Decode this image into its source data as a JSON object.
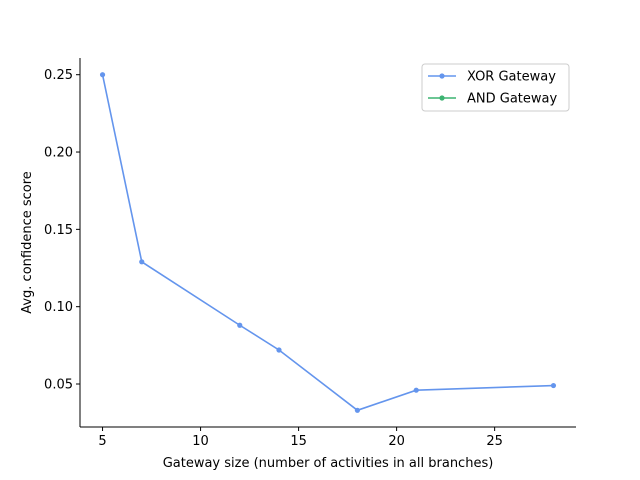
{
  "chart_data": {
    "type": "line",
    "title": "",
    "xlabel": "Gateway size (number of activities in all branches)",
    "ylabel": "Avg. confidence score",
    "xlim": [
      3.85,
      29.15
    ],
    "ylim": [
      0.0222,
      0.2608
    ],
    "xticks": [
      5,
      10,
      15,
      20,
      25
    ],
    "xtick_labels": [
      "5",
      "10",
      "15",
      "20",
      "25"
    ],
    "yticks": [
      0.05,
      0.1,
      0.15,
      0.2,
      0.25
    ],
    "ytick_labels": [
      "0.05",
      "0.10",
      "0.15",
      "0.20",
      "0.25"
    ],
    "grid": false,
    "legend_position": "upper right",
    "series": [
      {
        "name": "XOR Gateway",
        "color": "#6495ED",
        "x": [
          5,
          7,
          12,
          14,
          18,
          21,
          28
        ],
        "y": [
          0.25,
          0.129,
          0.088,
          0.072,
          0.033,
          0.046,
          0.049
        ]
      },
      {
        "name": "AND Gateway",
        "color": "#3CB371",
        "x": [],
        "y": []
      }
    ]
  }
}
